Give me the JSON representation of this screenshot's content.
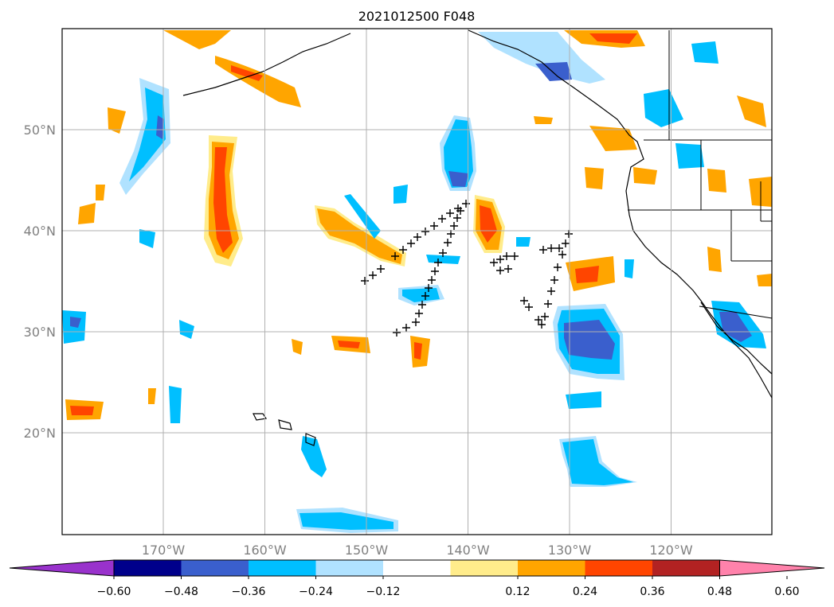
{
  "title": "2021012500 F048",
  "map": {
    "lat_labels": [
      {
        "value": 50,
        "text": "50°N"
      },
      {
        "value": 40,
        "text": "40°N"
      },
      {
        "value": 30,
        "text": "30°N"
      },
      {
        "value": 20,
        "text": "20°N"
      }
    ],
    "lon_labels": [
      {
        "value": -170,
        "text": "170°W"
      },
      {
        "value": -160,
        "text": "160°W"
      },
      {
        "value": -150,
        "text": "150°W"
      },
      {
        "value": -140,
        "text": "140°W"
      },
      {
        "value": -130,
        "text": "130°W"
      },
      {
        "value": -120,
        "text": "120°W"
      }
    ],
    "grid": true
  },
  "colorbar": {
    "extend": "both",
    "colors": [
      "#9932cc",
      "#00008b",
      "#3a5fcd",
      "#00bfff",
      "#b0e2ff",
      "#ffffff",
      "#ffec8b",
      "#ffa500",
      "#ff4500",
      "#b22222",
      "#ff82ab"
    ],
    "ticks": [
      "−0.60",
      "−0.48",
      "−0.36",
      "−0.24",
      "−0.12",
      "0.12",
      "0.24",
      "0.36",
      "0.48",
      "0.60"
    ]
  }
}
